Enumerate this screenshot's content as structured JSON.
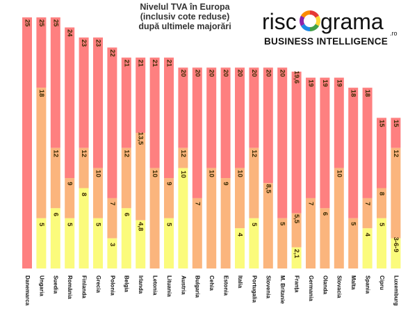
{
  "chart_data": {
    "type": "bar",
    "title_lines": [
      "Nivelul TVA în Europa",
      "(inclusiv cote reduse)",
      "după ultimele majorări"
    ],
    "categories": [
      "Danemarca",
      "Ungaria",
      "Suedia",
      "România",
      "Finlanda",
      "Grecia",
      "Polonia",
      "Belgia",
      "Irlanda",
      "Letonia",
      "Lituania",
      "Austria",
      "Bulgaria",
      "Cehia",
      "Estonia",
      "Italia",
      "Portugalia",
      "Slovenia",
      "M. Britanie",
      "Franța",
      "Germania",
      "Olanda",
      "Slovacia",
      "Malta",
      "Spania",
      "Cipru",
      "Luxemburg"
    ],
    "series": [
      {
        "values": [
          25,
          25,
          25,
          24,
          23,
          23,
          22,
          21,
          21,
          21,
          21,
          20,
          20,
          20,
          20,
          20,
          20,
          20,
          20,
          19.6,
          19,
          19,
          19,
          18,
          18,
          15,
          15
        ]
      },
      {
        "values": [
          null,
          18,
          12,
          9,
          12,
          10,
          7,
          12,
          13.5,
          10,
          9,
          12,
          7,
          10,
          9,
          10,
          12,
          8.5,
          5,
          5.5,
          7,
          6,
          10,
          5,
          7,
          8,
          12
        ]
      },
      {
        "values": [
          null,
          5,
          6,
          5,
          8,
          5,
          3,
          6,
          4.8,
          null,
          5,
          10,
          null,
          null,
          null,
          4,
          5,
          null,
          null,
          2.1,
          null,
          null,
          null,
          null,
          4,
          5,
          3
        ]
      }
    ],
    "value_labels": {
      "top": [
        "25",
        "25",
        "25",
        "24",
        "23",
        "23",
        "22",
        "21",
        "21",
        "21",
        "21",
        "20",
        "20",
        "20",
        "20",
        "20",
        "20",
        "20",
        "20",
        "19,6",
        "19",
        "19",
        "19",
        "18",
        "18",
        "15",
        "15"
      ],
      "middle": [
        "",
        "18",
        "12",
        "9",
        "12",
        "10",
        "7",
        "12",
        "13,5",
        "10",
        "9",
        "12",
        "7",
        "10",
        "9",
        "10",
        "12",
        "8,5",
        "5",
        "5,5",
        "7",
        "6",
        "10",
        "5",
        "7",
        "8",
        "12"
      ],
      "low": [
        "",
        "5",
        "6",
        "5",
        "8",
        "5",
        "3",
        "6",
        "4,8",
        "",
        "5",
        "10",
        "",
        "",
        "",
        "4",
        "5",
        "",
        "",
        "2,1",
        "",
        "",
        "",
        "",
        "4",
        "5",
        "3-6-9"
      ]
    },
    "ylim": [
      0,
      25
    ],
    "colors": {
      "top": "#fe8080",
      "middle": "#fbb57d",
      "low": "#fbfb7c"
    }
  },
  "brand": {
    "name_left": "risc",
    "name_right": "grama",
    "domain": ".ro",
    "tagline": "BUSINESS INTELLIGENCE",
    "ring_colors": [
      "#e53935",
      "#fdd835",
      "#43a047",
      "#1e88e5",
      "#8e24aa",
      "#fb8c00"
    ]
  }
}
